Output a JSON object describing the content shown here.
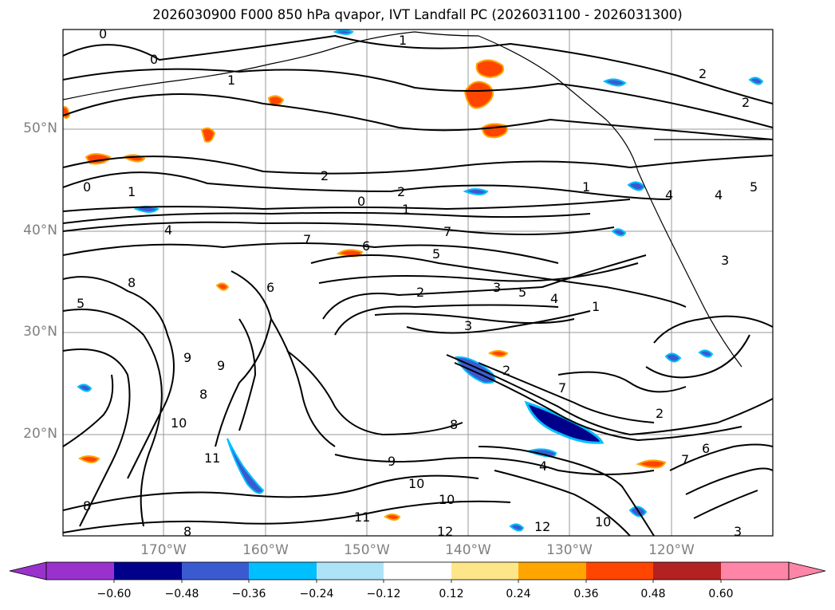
{
  "figure": {
    "title": "2026030900 F000 850 hPa qvapor, IVT Landfall PC (2026031100 - 2026031300)"
  },
  "map": {
    "lat_labels": [
      "50°N",
      "40°N",
      "30°N",
      "20°N"
    ],
    "lon_labels": [
      "170°W",
      "160°W",
      "150°W",
      "140°W",
      "130°W",
      "120°W"
    ],
    "contour_labels": [
      "0",
      "1",
      "1",
      "0",
      "2",
      "2",
      "0",
      "1",
      "1",
      "0",
      "4",
      "6",
      "5",
      "7",
      "7",
      "6",
      "5",
      "8",
      "2",
      "3",
      "5",
      "4",
      "1",
      "3",
      "2",
      "7",
      "9",
      "9",
      "8",
      "8",
      "10",
      "11",
      "8",
      "9",
      "10",
      "10",
      "11",
      "12",
      "12",
      "8",
      "10",
      "7",
      "2",
      "4",
      "3",
      "4",
      "1",
      "2",
      "2",
      "6",
      "5",
      "3",
      "4"
    ],
    "colors": {
      "grid": "#9a9a9a",
      "contour": "#000000",
      "coast": "#000000"
    }
  },
  "colorbar": {
    "ticks": [
      "−0.60",
      "−0.48",
      "−0.36",
      "−0.24",
      "−0.12",
      "0.12",
      "0.24",
      "0.36",
      "0.48",
      "0.60"
    ],
    "colors": [
      "#9932cc",
      "#00008b",
      "#3a5bd0",
      "#00bfff",
      "#aee3f7",
      "#ffffff",
      "#fde68a",
      "#ffa500",
      "#ff4500",
      "#b22222",
      "#ff85a8"
    ]
  }
}
